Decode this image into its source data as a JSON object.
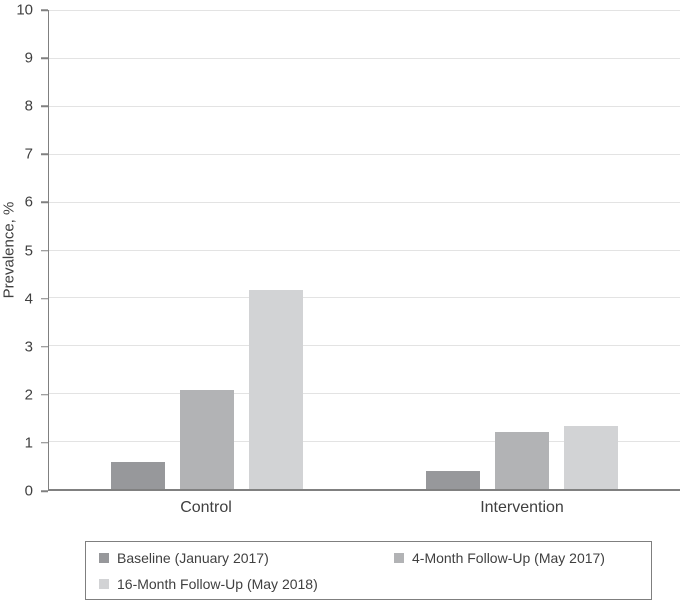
{
  "chart_data": {
    "type": "bar",
    "title": "",
    "xlabel": "",
    "ylabel": "Prevalence, %",
    "ylim": [
      0,
      10
    ],
    "ytick_step": 1,
    "grid": true,
    "legend_position": "bottom-boxed",
    "categories": [
      "Control",
      "Intervention"
    ],
    "series": [
      {
        "name": "Baseline (January 2017)",
        "color": "#97989b",
        "values": [
          0.56,
          0.38
        ]
      },
      {
        "name": "4-Month Follow-Up (May 2017)",
        "color": "#b2b3b5",
        "values": [
          2.06,
          1.19
        ]
      },
      {
        "name": "16-Month Follow-Up (May 2018)",
        "color": "#d2d3d5",
        "values": [
          4.16,
          1.32
        ]
      }
    ]
  },
  "colors": {
    "axis": "#808080",
    "gridline": "#e3e3e3",
    "text": "#404040",
    "legend_border": "#7f7f7f",
    "background": "#ffffff"
  }
}
